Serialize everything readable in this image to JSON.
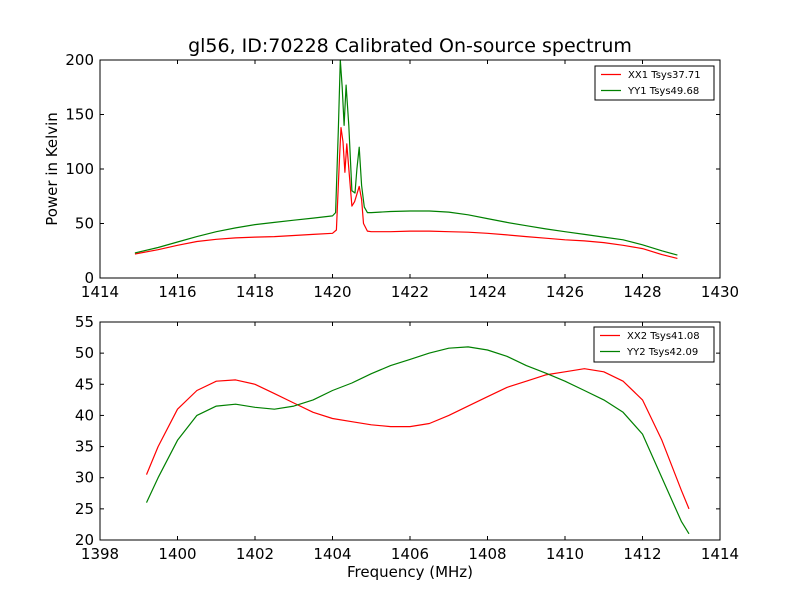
{
  "figure": {
    "title": "gl56, ID:70228 Calibrated On-source spectrum",
    "ylabel": "Power in Kelvin",
    "xlabel": "Frequency (MHz)"
  },
  "chart_data": [
    {
      "type": "line",
      "title": "gl56, ID:70228 Calibrated On-source spectrum",
      "xlabel": "",
      "ylabel": "Power in Kelvin",
      "xlim": [
        1414,
        1430
      ],
      "ylim": [
        0,
        200
      ],
      "xticks": [
        1414,
        1416,
        1418,
        1420,
        1422,
        1424,
        1426,
        1428,
        1430
      ],
      "yticks": [
        0,
        50,
        100,
        150,
        200
      ],
      "grid": false,
      "legend": "top-right",
      "series": [
        {
          "name": "XX1 Tsys37.71",
          "color": "#ff0000",
          "points": [
            [
              1414.9,
              22
            ],
            [
              1415.5,
              26
            ],
            [
              1416,
              30
            ],
            [
              1416.5,
              33.5
            ],
            [
              1417,
              35.5
            ],
            [
              1417.5,
              36.8
            ],
            [
              1418,
              37.5
            ],
            [
              1418.5,
              38
            ],
            [
              1419,
              39
            ],
            [
              1419.5,
              40
            ],
            [
              1420,
              41
            ],
            [
              1420.1,
              44
            ],
            [
              1420.18,
              110
            ],
            [
              1420.22,
              138
            ],
            [
              1420.27,
              125
            ],
            [
              1420.32,
              97
            ],
            [
              1420.37,
              123
            ],
            [
              1420.43,
              96
            ],
            [
              1420.5,
              66
            ],
            [
              1420.57,
              70
            ],
            [
              1420.63,
              77
            ],
            [
              1420.69,
              84
            ],
            [
              1420.75,
              72
            ],
            [
              1420.8,
              50
            ],
            [
              1420.9,
              43
            ],
            [
              1421,
              42.5
            ],
            [
              1421.5,
              42.5
            ],
            [
              1422,
              43
            ],
            [
              1422.5,
              43
            ],
            [
              1423,
              42.5
            ],
            [
              1423.5,
              42
            ],
            [
              1424,
              41
            ],
            [
              1424.5,
              39.5
            ],
            [
              1425,
              38
            ],
            [
              1425.5,
              36.5
            ],
            [
              1426,
              35
            ],
            [
              1426.5,
              34
            ],
            [
              1427,
              32.5
            ],
            [
              1427.5,
              30
            ],
            [
              1428,
              27
            ],
            [
              1428.5,
              21.5
            ],
            [
              1428.9,
              18
            ]
          ]
        },
        {
          "name": "YY1 Tsys49.68",
          "color": "#008000",
          "points": [
            [
              1414.9,
              23
            ],
            [
              1415.5,
              28
            ],
            [
              1416,
              33
            ],
            [
              1416.5,
              38
            ],
            [
              1417,
              42.5
            ],
            [
              1417.5,
              46
            ],
            [
              1418,
              49
            ],
            [
              1418.5,
              51
            ],
            [
              1419,
              53
            ],
            [
              1419.5,
              55
            ],
            [
              1420,
              57
            ],
            [
              1420.08,
              60
            ],
            [
              1420.15,
              135
            ],
            [
              1420.2,
              200
            ],
            [
              1420.25,
              175
            ],
            [
              1420.3,
              140
            ],
            [
              1420.35,
              177
            ],
            [
              1420.42,
              140
            ],
            [
              1420.5,
              80
            ],
            [
              1420.58,
              78
            ],
            [
              1420.63,
              100
            ],
            [
              1420.69,
              120
            ],
            [
              1420.75,
              85
            ],
            [
              1420.82,
              65
            ],
            [
              1420.9,
              60
            ],
            [
              1421,
              60
            ],
            [
              1421.5,
              61
            ],
            [
              1422,
              61.5
            ],
            [
              1422.5,
              61.5
            ],
            [
              1423,
              60.5
            ],
            [
              1423.5,
              58
            ],
            [
              1424,
              54.5
            ],
            [
              1424.5,
              51
            ],
            [
              1425,
              48
            ],
            [
              1425.5,
              45
            ],
            [
              1426,
              42.5
            ],
            [
              1426.5,
              40
            ],
            [
              1427,
              37.5
            ],
            [
              1427.5,
              35
            ],
            [
              1428,
              30.5
            ],
            [
              1428.5,
              25
            ],
            [
              1428.9,
              21
            ]
          ]
        }
      ]
    },
    {
      "type": "line",
      "title": "",
      "xlabel": "Frequency (MHz)",
      "ylabel": "",
      "xlim": [
        1398,
        1414
      ],
      "ylim": [
        20,
        55
      ],
      "xticks": [
        1398,
        1400,
        1402,
        1404,
        1406,
        1408,
        1410,
        1412,
        1414
      ],
      "yticks": [
        20,
        25,
        30,
        35,
        40,
        45,
        50,
        55
      ],
      "grid": false,
      "legend": "top-right",
      "series": [
        {
          "name": "XX2 Tsys41.08",
          "color": "#ff0000",
          "points": [
            [
              1399.2,
              30.5
            ],
            [
              1399.5,
              35
            ],
            [
              1400,
              41
            ],
            [
              1400.5,
              44
            ],
            [
              1401,
              45.5
            ],
            [
              1401.5,
              45.7
            ],
            [
              1402,
              45
            ],
            [
              1402.5,
              43.5
            ],
            [
              1403,
              42
            ],
            [
              1403.5,
              40.5
            ],
            [
              1404,
              39.5
            ],
            [
              1404.5,
              39
            ],
            [
              1405,
              38.5
            ],
            [
              1405.5,
              38.2
            ],
            [
              1406,
              38.2
            ],
            [
              1406.5,
              38.7
            ],
            [
              1407,
              40
            ],
            [
              1407.5,
              41.5
            ],
            [
              1408,
              43
            ],
            [
              1408.5,
              44.5
            ],
            [
              1409,
              45.5
            ],
            [
              1409.5,
              46.5
            ],
            [
              1410,
              47
            ],
            [
              1410.5,
              47.5
            ],
            [
              1411,
              47
            ],
            [
              1411.5,
              45.5
            ],
            [
              1412,
              42.5
            ],
            [
              1412.5,
              36
            ],
            [
              1413,
              28
            ],
            [
              1413.2,
              25
            ]
          ]
        },
        {
          "name": "YY2 Tsys42.09",
          "color": "#008000",
          "points": [
            [
              1399.2,
              26
            ],
            [
              1399.5,
              30
            ],
            [
              1400,
              36
            ],
            [
              1400.5,
              40
            ],
            [
              1401,
              41.5
            ],
            [
              1401.5,
              41.8
            ],
            [
              1402,
              41.3
            ],
            [
              1402.5,
              41
            ],
            [
              1403,
              41.5
            ],
            [
              1403.5,
              42.5
            ],
            [
              1404,
              44
            ],
            [
              1404.5,
              45.2
            ],
            [
              1405,
              46.7
            ],
            [
              1405.5,
              48
            ],
            [
              1406,
              49
            ],
            [
              1406.5,
              50
            ],
            [
              1407,
              50.8
            ],
            [
              1407.5,
              51
            ],
            [
              1408,
              50.5
            ],
            [
              1408.5,
              49.5
            ],
            [
              1409,
              48
            ],
            [
              1409.5,
              46.8
            ],
            [
              1410,
              45.5
            ],
            [
              1410.5,
              44
            ],
            [
              1411,
              42.5
            ],
            [
              1411.5,
              40.5
            ],
            [
              1412,
              37
            ],
            [
              1412.5,
              30
            ],
            [
              1413,
              23
            ],
            [
              1413.2,
              21
            ]
          ]
        }
      ]
    }
  ]
}
